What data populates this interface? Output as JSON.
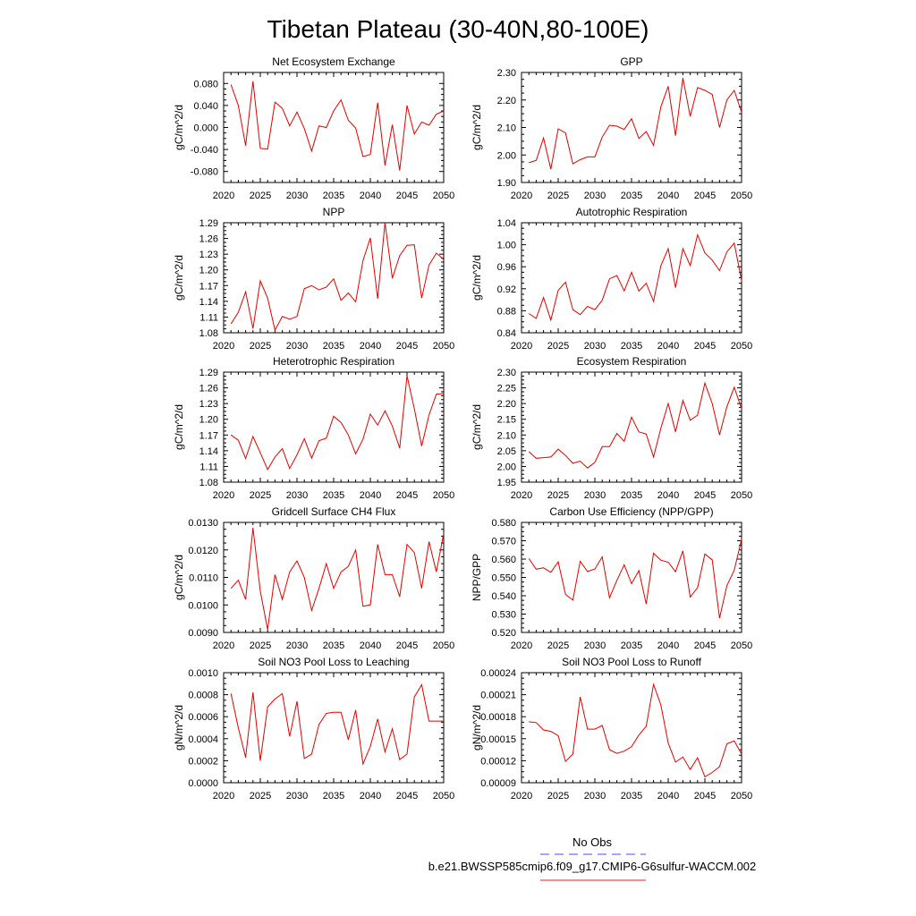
{
  "title": "Tibetan Plateau (30-40N,80-100E)",
  "legend": {
    "entries": [
      {
        "label": "No Obs",
        "color": "#4d4dff",
        "dash": true
      },
      {
        "label": "b.e21.BWSSP585cmip6.f09_g17.CMIP6-G6sulfur-WACCM.002",
        "color": "#e02020",
        "dash": false
      }
    ]
  },
  "colors": {
    "series": "#e00000"
  },
  "chart_data": [
    {
      "type": "line",
      "title": "Net Ecosystem Exchange",
      "ylabel": "gC/m^2/d",
      "xlim": [
        2020,
        2050
      ],
      "ylim": [
        -0.1,
        0.1
      ],
      "xticks": [
        "2020",
        "2025",
        "2030",
        "2035",
        "2040",
        "2045",
        "2050"
      ],
      "yticks": [
        "0.080",
        "0.040",
        "0.000",
        "-0.040",
        "-0.080"
      ],
      "x": [
        2021,
        2022,
        2023,
        2024,
        2025,
        2026,
        2027,
        2028,
        2029,
        2030,
        2031,
        2032,
        2033,
        2034,
        2035,
        2036,
        2037,
        2038,
        2039,
        2040,
        2041,
        2042,
        2043,
        2044,
        2045,
        2046,
        2047,
        2048,
        2049,
        2050
      ],
      "values": [
        0.078,
        0.04,
        -0.033,
        0.084,
        -0.038,
        -0.039,
        0.046,
        0.035,
        0.003,
        0.028,
        -0.002,
        -0.043,
        0.003,
        0.0,
        0.03,
        0.05,
        0.013,
        -0.001,
        -0.053,
        -0.049,
        0.045,
        -0.069,
        0.005,
        -0.078,
        0.04,
        -0.012,
        0.01,
        0.004,
        0.024,
        0.03
      ]
    },
    {
      "type": "line",
      "title": "GPP",
      "ylabel": "gC/m^2/d",
      "xlim": [
        2020,
        2050
      ],
      "ylim": [
        1.9,
        2.3
      ],
      "xticks": [
        "2020",
        "2025",
        "2030",
        "2035",
        "2040",
        "2045",
        "2050"
      ],
      "yticks": [
        "2.30",
        "2.20",
        "2.10",
        "2.00",
        "1.90"
      ],
      "x": [
        2021,
        2022,
        2023,
        2024,
        2025,
        2026,
        2027,
        2028,
        2029,
        2030,
        2031,
        2032,
        2033,
        2034,
        2035,
        2036,
        2037,
        2038,
        2039,
        2040,
        2041,
        2042,
        2043,
        2044,
        2045,
        2046,
        2047,
        2048,
        2049,
        2050
      ],
      "values": [
        1.972,
        1.98,
        2.062,
        1.948,
        2.095,
        2.08,
        1.968,
        1.983,
        1.993,
        1.993,
        2.065,
        2.108,
        2.105,
        2.093,
        2.132,
        2.06,
        2.085,
        2.035,
        2.175,
        2.25,
        2.07,
        2.28,
        2.14,
        2.245,
        2.235,
        2.22,
        2.1,
        2.2,
        2.235,
        2.155
      ]
    },
    {
      "type": "line",
      "title": "NPP",
      "ylabel": "gC/m^2/d",
      "xlim": [
        2020,
        2050
      ],
      "ylim": [
        1.08,
        1.29
      ],
      "xticks": [
        "2020",
        "2025",
        "2030",
        "2035",
        "2040",
        "2045",
        "2050"
      ],
      "yticks": [
        "1.29",
        "1.26",
        "1.23",
        "1.20",
        "1.17",
        "1.14",
        "1.11",
        "1.08"
      ],
      "x": [
        2021,
        2022,
        2023,
        2024,
        2025,
        2026,
        2027,
        2028,
        2029,
        2030,
        2031,
        2032,
        2033,
        2034,
        2035,
        2036,
        2037,
        2038,
        2039,
        2040,
        2041,
        2042,
        2043,
        2044,
        2045,
        2046,
        2047,
        2048,
        2049,
        2050
      ],
      "values": [
        1.097,
        1.119,
        1.158,
        1.088,
        1.179,
        1.146,
        1.085,
        1.111,
        1.106,
        1.111,
        1.164,
        1.17,
        1.162,
        1.167,
        1.183,
        1.142,
        1.156,
        1.139,
        1.218,
        1.261,
        1.145,
        1.29,
        1.184,
        1.227,
        1.247,
        1.248,
        1.146,
        1.209,
        1.232,
        1.22
      ]
    },
    {
      "type": "line",
      "title": "Autotrophic Respiration",
      "ylabel": "gC/m^2/d",
      "xlim": [
        2020,
        2050
      ],
      "ylim": [
        0.84,
        1.04
      ],
      "xticks": [
        "2020",
        "2025",
        "2030",
        "2035",
        "2040",
        "2045",
        "2050"
      ],
      "yticks": [
        "1.04",
        "1.00",
        "0.96",
        "0.92",
        "0.88",
        "0.84"
      ],
      "x": [
        2021,
        2022,
        2023,
        2024,
        2025,
        2026,
        2027,
        2028,
        2029,
        2030,
        2031,
        2032,
        2033,
        2034,
        2035,
        2036,
        2037,
        2038,
        2039,
        2040,
        2041,
        2042,
        2043,
        2044,
        2045,
        2046,
        2047,
        2048,
        2049,
        2050
      ],
      "values": [
        0.875,
        0.866,
        0.904,
        0.863,
        0.917,
        0.932,
        0.882,
        0.873,
        0.888,
        0.882,
        0.899,
        0.938,
        0.944,
        0.916,
        0.95,
        0.916,
        0.93,
        0.897,
        0.962,
        0.993,
        0.922,
        0.993,
        0.962,
        1.018,
        0.985,
        0.972,
        0.953,
        0.987,
        1.003,
        0.935
      ]
    },
    {
      "type": "line",
      "title": "Heterotrophic Respiration",
      "ylabel": "gC/m^2/d",
      "xlim": [
        2020,
        2050
      ],
      "ylim": [
        1.08,
        1.29
      ],
      "xticks": [
        "2020",
        "2025",
        "2030",
        "2035",
        "2040",
        "2045",
        "2050"
      ],
      "yticks": [
        "1.29",
        "1.26",
        "1.23",
        "1.20",
        "1.17",
        "1.14",
        "1.11",
        "1.08"
      ],
      "x": [
        2021,
        2022,
        2023,
        2024,
        2025,
        2026,
        2027,
        2028,
        2029,
        2030,
        2031,
        2032,
        2033,
        2034,
        2035,
        2036,
        2037,
        2038,
        2039,
        2040,
        2041,
        2042,
        2043,
        2044,
        2045,
        2046,
        2047,
        2048,
        2049,
        2050
      ],
      "values": [
        1.17,
        1.16,
        1.125,
        1.167,
        1.136,
        1.104,
        1.128,
        1.144,
        1.106,
        1.132,
        1.163,
        1.126,
        1.159,
        1.164,
        1.206,
        1.194,
        1.17,
        1.134,
        1.162,
        1.21,
        1.189,
        1.216,
        1.187,
        1.145,
        1.283,
        1.22,
        1.149,
        1.208,
        1.248,
        1.249
      ]
    },
    {
      "type": "line",
      "title": "Ecosystem Respiration",
      "ylabel": "gC/m^2/d",
      "xlim": [
        2020,
        2050
      ],
      "ylim": [
        1.95,
        2.3
      ],
      "xticks": [
        "2020",
        "2025",
        "2030",
        "2035",
        "2040",
        "2045",
        "2050"
      ],
      "yticks": [
        "2.30",
        "2.25",
        "2.20",
        "2.15",
        "2.10",
        "2.05",
        "2.00",
        "1.95"
      ],
      "x": [
        2021,
        2022,
        2023,
        2024,
        2025,
        2026,
        2027,
        2028,
        2029,
        2030,
        2031,
        2032,
        2033,
        2034,
        2035,
        2036,
        2037,
        2038,
        2039,
        2040,
        2041,
        2042,
        2043,
        2044,
        2045,
        2046,
        2047,
        2048,
        2049,
        2050
      ],
      "values": [
        2.047,
        2.026,
        2.028,
        2.03,
        2.055,
        2.035,
        2.01,
        2.017,
        1.995,
        2.013,
        2.063,
        2.063,
        2.105,
        2.08,
        2.157,
        2.11,
        2.103,
        2.03,
        2.122,
        2.2,
        2.11,
        2.21,
        2.147,
        2.163,
        2.265,
        2.2,
        2.1,
        2.19,
        2.252,
        2.183
      ]
    },
    {
      "type": "line",
      "title": "Gridcell Surface CH4 Flux",
      "ylabel": "gC/m^2/d",
      "xlim": [
        2020,
        2050
      ],
      "ylim": [
        0.009,
        0.013
      ],
      "xticks": [
        "2020",
        "2025",
        "2030",
        "2035",
        "2040",
        "2045",
        "2050"
      ],
      "yticks": [
        "0.0130",
        "0.0120",
        "0.0110",
        "0.0100",
        "0.0090"
      ],
      "x": [
        2021,
        2022,
        2023,
        2024,
        2025,
        2026,
        2027,
        2028,
        2029,
        2030,
        2031,
        2032,
        2033,
        2034,
        2035,
        2036,
        2037,
        2038,
        2039,
        2040,
        2041,
        2042,
        2043,
        2044,
        2045,
        2046,
        2047,
        2048,
        2049,
        2050
      ],
      "values": [
        0.0106,
        0.0109,
        0.0102,
        0.0128,
        0.0105,
        0.0091,
        0.0111,
        0.0102,
        0.0112,
        0.0116,
        0.011,
        0.0098,
        0.0106,
        0.0115,
        0.0106,
        0.0112,
        0.0114,
        0.012,
        0.00995,
        0.01,
        0.0122,
        0.0111,
        0.0111,
        0.0103,
        0.0122,
        0.0119,
        0.0106,
        0.0123,
        0.0112,
        0.0126
      ]
    },
    {
      "type": "line",
      "title": "Carbon Use Efficiency (NPP/GPP)",
      "ylabel": "NPP/GPP",
      "xlim": [
        2020,
        2050
      ],
      "ylim": [
        0.52,
        0.58
      ],
      "xticks": [
        "2020",
        "2025",
        "2030",
        "2035",
        "2040",
        "2045",
        "2050"
      ],
      "yticks": [
        "0.580",
        "0.570",
        "0.560",
        "0.550",
        "0.540",
        "0.530",
        "0.520"
      ],
      "x": [
        2021,
        2022,
        2023,
        2024,
        2025,
        2026,
        2027,
        2028,
        2029,
        2030,
        2031,
        2032,
        2033,
        2034,
        2035,
        2036,
        2037,
        2038,
        2039,
        2040,
        2041,
        2042,
        2043,
        2044,
        2045,
        2046,
        2047,
        2048,
        2049,
        2050
      ],
      "values": [
        0.5603,
        0.5545,
        0.5552,
        0.5528,
        0.5585,
        0.5408,
        0.5376,
        0.5588,
        0.5532,
        0.5546,
        0.5612,
        0.5389,
        0.5484,
        0.5569,
        0.5466,
        0.5537,
        0.5355,
        0.5632,
        0.5594,
        0.5583,
        0.5531,
        0.5645,
        0.5393,
        0.5444,
        0.5628,
        0.5596,
        0.5278,
        0.5455,
        0.5539,
        0.5709
      ]
    },
    {
      "type": "line",
      "title": "Soil NO3 Pool Loss to Leaching",
      "ylabel": "gN/m^2/d",
      "xlim": [
        2020,
        2050
      ],
      "ylim": [
        0.0,
        0.001
      ],
      "xticks": [
        "2020",
        "2025",
        "2030",
        "2035",
        "2040",
        "2045",
        "2050"
      ],
      "yticks": [
        "0.0010",
        "0.0008",
        "0.0006",
        "0.0004",
        "0.0002",
        "0.0000"
      ],
      "x": [
        2021,
        2022,
        2023,
        2024,
        2025,
        2026,
        2027,
        2028,
        2029,
        2030,
        2031,
        2032,
        2033,
        2034,
        2035,
        2036,
        2037,
        2038,
        2039,
        2040,
        2041,
        2042,
        2043,
        2044,
        2045,
        2046,
        2047,
        2048,
        2049,
        2050
      ],
      "values": [
        0.00081,
        0.0005,
        0.00023,
        0.00082,
        0.0002,
        0.00069,
        0.00076,
        0.00081,
        0.00042,
        0.00074,
        0.00022,
        0.00026,
        0.00053,
        0.00063,
        0.00064,
        0.00064,
        0.00039,
        0.00066,
        0.00017,
        0.00033,
        0.00058,
        0.00028,
        0.00049,
        0.00021,
        0.00026,
        0.00078,
        0.00089,
        0.00056,
        0.00056,
        0.00056
      ]
    },
    {
      "type": "line",
      "title": "Soil NO3 Pool Loss to Runoff",
      "ylabel": "gN/m^2/d",
      "xlim": [
        2020,
        2050
      ],
      "ylim": [
        9e-05,
        0.00024
      ],
      "xticks": [
        "2020",
        "2025",
        "2030",
        "2035",
        "2040",
        "2045",
        "2050"
      ],
      "yticks": [
        "0.00024",
        "0.00021",
        "0.00018",
        "0.00015",
        "0.00012",
        "0.00009"
      ],
      "x": [
        2021,
        2022,
        2023,
        2024,
        2025,
        2026,
        2027,
        2028,
        2029,
        2030,
        2031,
        2032,
        2033,
        2034,
        2035,
        2036,
        2037,
        2038,
        2039,
        2040,
        2041,
        2042,
        2043,
        2044,
        2045,
        2046,
        2047,
        2048,
        2049,
        2050
      ],
      "values": [
        0.000173,
        0.000172,
        0.000162,
        0.00016,
        0.000154,
        0.000119,
        0.000129,
        0.000207,
        0.000163,
        0.000163,
        0.000168,
        0.000135,
        0.00013,
        0.000133,
        0.000139,
        0.000155,
        0.000167,
        0.000224,
        0.000196,
        0.000144,
        0.000118,
        0.000125,
        0.000108,
        0.000124,
        9.8e-05,
        0.000104,
        0.000112,
        0.000143,
        0.000147,
        0.000129
      ]
    }
  ]
}
